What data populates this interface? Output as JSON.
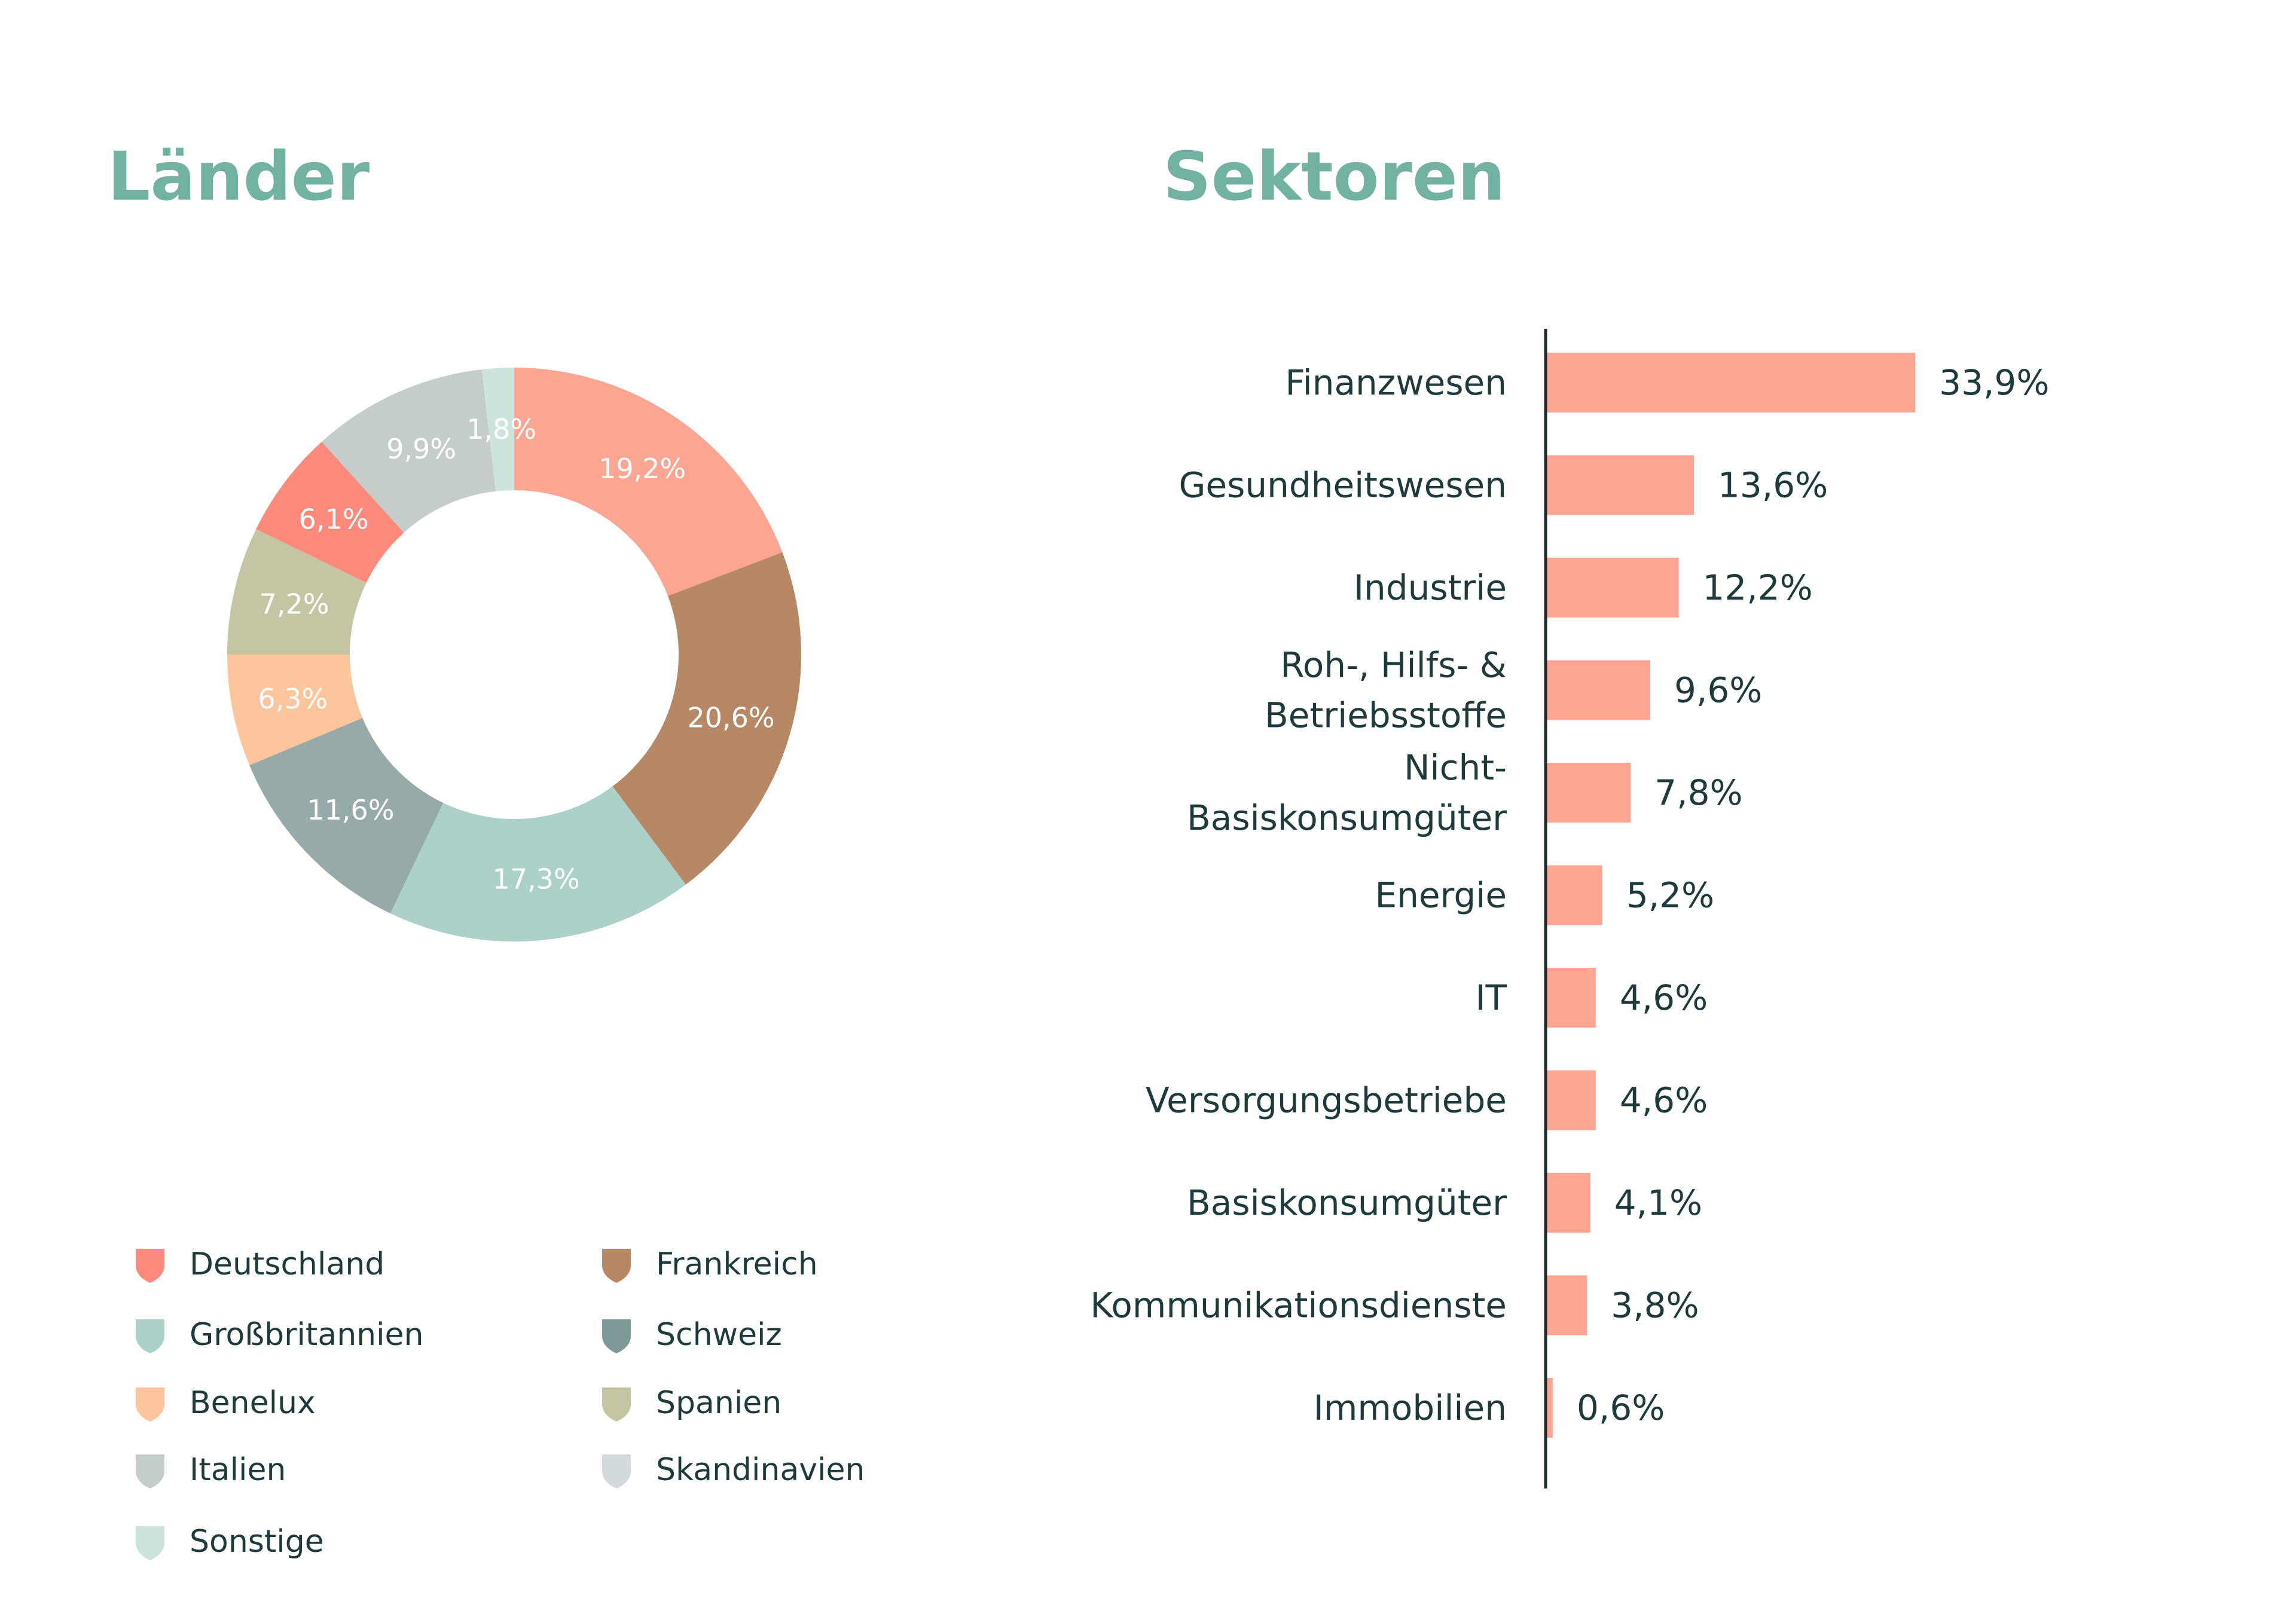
{
  "laender": {
    "title": "Länder",
    "chart_data": {
      "type": "pie",
      "variant": "donut",
      "slices": [
        {
          "label": "Deutschland",
          "value": 19.2,
          "display": "19,2%",
          "color": "#fca592"
        },
        {
          "label": "Frankreich",
          "value": 20.6,
          "display": "20,6%",
          "color": "#b68865"
        },
        {
          "label": "Großbritannien",
          "value": 17.3,
          "display": "17,3%",
          "color": "#abd1c8"
        },
        {
          "label": "Schweiz",
          "value": 11.6,
          "display": "11,6%",
          "color": "#97aaaa"
        },
        {
          "label": "Benelux",
          "value": 6.3,
          "display": "6,3%",
          "color": "#fcc59c"
        },
        {
          "label": "Spanien",
          "value": 7.2,
          "display": "7,2%",
          "color": "#c5c5a4"
        },
        {
          "label": "Italien",
          "value": 6.1,
          "display": "6,1%",
          "color": "#fb897c"
        },
        {
          "label": "Skandinavien",
          "value": 9.9,
          "display": "9,9%",
          "color": "#c4cdcc"
        },
        {
          "label": "Sonstige",
          "value": 1.8,
          "display": "1,8%",
          "color": "#cce4dc"
        }
      ]
    },
    "legend": [
      {
        "label": "Deutschland",
        "color": "#fb897c"
      },
      {
        "label": "Frankreich",
        "color": "#b68865"
      },
      {
        "label": "Großbritannien",
        "color": "#abd1c8"
      },
      {
        "label": "Schweiz",
        "color": "#7f9898"
      },
      {
        "label": "Benelux",
        "color": "#fcc59c"
      },
      {
        "label": "Spanien",
        "color": "#c5c5a4"
      },
      {
        "label": "Italien",
        "color": "#c4cdcc"
      },
      {
        "label": "Skandinavien",
        "color": "#d3dadc"
      },
      {
        "label": "Sonstige",
        "color": "#cce4dc"
      }
    ]
  },
  "sektoren": {
    "title": "Sektoren",
    "chart_data": {
      "type": "bar",
      "orientation": "horizontal",
      "bar_color": "#fca592",
      "categories": [
        [
          "Finanzwesen"
        ],
        [
          "Gesundheitswesen"
        ],
        [
          "Industrie"
        ],
        [
          "Roh-, Hilfs- &",
          "Betriebsstoffe"
        ],
        [
          "Nicht-",
          "Basiskonsumgüter"
        ],
        [
          "Energie"
        ],
        [
          "IT"
        ],
        [
          "Versorgungsbetriebe"
        ],
        [
          "Basiskonsumgüter"
        ],
        [
          "Kommunikationsdienste"
        ],
        [
          "Immobilien"
        ]
      ],
      "values": [
        33.9,
        13.6,
        12.2,
        9.6,
        7.8,
        5.2,
        4.6,
        4.6,
        4.1,
        3.8,
        0.6
      ],
      "value_labels": [
        "33,9%",
        "13,6%",
        "12,2%",
        "9,6%",
        "7,8%",
        "5,2%",
        "4,6%",
        "4,6%",
        "4,1%",
        "3,8%",
        "0,6%"
      ],
      "xlim": [
        0,
        34
      ]
    }
  }
}
